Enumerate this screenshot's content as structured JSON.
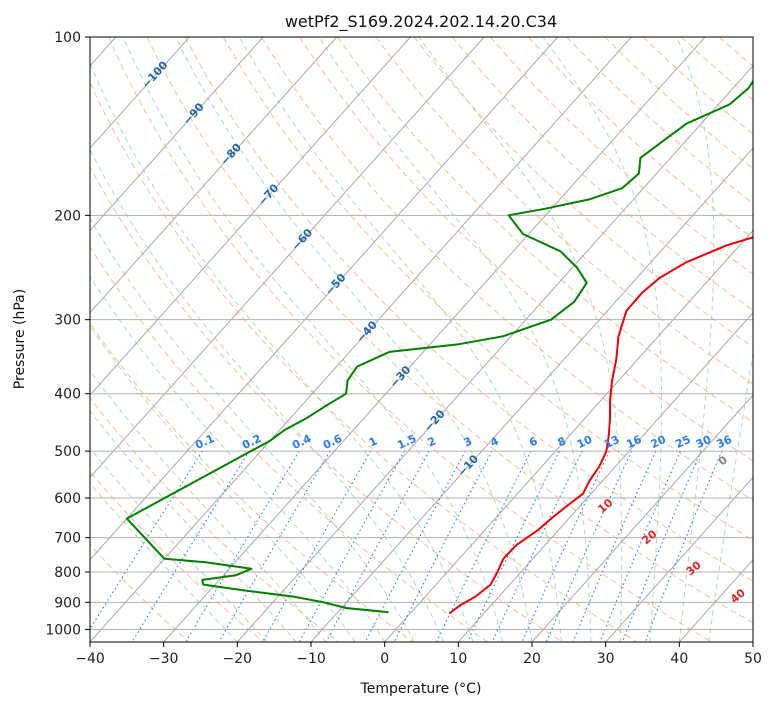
{
  "chart_data": {
    "type": "line",
    "title": "wetPf2_S169.2024.202.14.20.C34",
    "xlabel": "Temperature (°C)",
    "ylabel": "Pressure (hPa)",
    "xlim": [
      -40,
      50
    ],
    "ylim": [
      1050,
      100
    ],
    "y_scale": "log",
    "grid": true,
    "x_ticks": [
      -40,
      -30,
      -20,
      -10,
      0,
      10,
      20,
      30,
      40,
      50
    ],
    "x_tick_labels": [
      "−40",
      "−30",
      "−20",
      "−10",
      "0",
      "10",
      "20",
      "30",
      "40",
      "50"
    ],
    "y_ticks": [
      100,
      200,
      300,
      400,
      500,
      600,
      700,
      800,
      900,
      1000
    ],
    "y_tick_labels": [
      "100",
      "200",
      "300",
      "400",
      "500",
      "600",
      "700",
      "800",
      "900",
      "1000"
    ],
    "colors": {
      "temperature": "#e8000b",
      "dewpoint": "#008000",
      "isotherm": "#a8a8a8",
      "dry_adiabat": "#f4a582",
      "moist_adiabat": "#a6d3a6",
      "mixing_ratio": "#2b7de9",
      "isotherm_label": "#2166ac",
      "dry_label": "#d62728",
      "wet_bulb_label": "#808080"
    },
    "series": [
      {
        "role": "temperature",
        "points": [
          {
            "p": 940,
            "t": 5.3
          },
          {
            "p": 910,
            "t": 5.8
          },
          {
            "p": 880,
            "t": 6.8
          },
          {
            "p": 840,
            "t": 7.4
          },
          {
            "p": 800,
            "t": 6.8
          },
          {
            "p": 760,
            "t": 6.0
          },
          {
            "p": 720,
            "t": 6.1
          },
          {
            "p": 680,
            "t": 7.2
          },
          {
            "p": 650,
            "t": 7.6
          },
          {
            "p": 620,
            "t": 8.2
          },
          {
            "p": 590,
            "t": 8.9
          },
          {
            "p": 560,
            "t": 8.2
          },
          {
            "p": 530,
            "t": 7.8
          },
          {
            "p": 500,
            "t": 6.9
          },
          {
            "p": 470,
            "t": 5.3
          },
          {
            "p": 440,
            "t": 3.4
          },
          {
            "p": 410,
            "t": 1.2
          },
          {
            "p": 380,
            "t": -0.9
          },
          {
            "p": 350,
            "t": -2.9
          },
          {
            "p": 320,
            "t": -5.4
          },
          {
            "p": 290,
            "t": -7.4
          },
          {
            "p": 270,
            "t": -7.5
          },
          {
            "p": 255,
            "t": -6.9
          },
          {
            "p": 240,
            "t": -5.2
          },
          {
            "p": 225,
            "t": -1.8
          },
          {
            "p": 210,
            "t": 3.8
          },
          {
            "p": 195,
            "t": 7.1
          },
          {
            "p": 180,
            "t": 8.5
          },
          {
            "p": 165,
            "t": 10.3
          },
          {
            "p": 150,
            "t": 12.9
          },
          {
            "p": 135,
            "t": 13.8
          },
          {
            "p": 125,
            "t": 13.8
          },
          {
            "p": 115,
            "t": 15.3
          },
          {
            "p": 105,
            "t": 17.9
          },
          {
            "p": 100,
            "t": 18.1
          }
        ]
      },
      {
        "role": "dewpoint",
        "points": [
          {
            "p": 935,
            "t": -3.1
          },
          {
            "p": 920,
            "t": -9.4
          },
          {
            "p": 900,
            "t": -13.1
          },
          {
            "p": 880,
            "t": -17.9
          },
          {
            "p": 860,
            "t": -25.1
          },
          {
            "p": 840,
            "t": -31.6
          },
          {
            "p": 825,
            "t": -32.3
          },
          {
            "p": 810,
            "t": -28.3
          },
          {
            "p": 790,
            "t": -27.0
          },
          {
            "p": 770,
            "t": -34.0
          },
          {
            "p": 760,
            "t": -40.0
          },
          {
            "p": 650,
            "t": -50.0
          },
          {
            "p": 480,
            "t": -40.0
          },
          {
            "p": 460,
            "t": -39.3
          },
          {
            "p": 440,
            "t": -37.8
          },
          {
            "p": 420,
            "t": -36.7
          },
          {
            "p": 400,
            "t": -35.4
          },
          {
            "p": 380,
            "t": -36.8
          },
          {
            "p": 360,
            "t": -37.2
          },
          {
            "p": 340,
            "t": -34.6
          },
          {
            "p": 330,
            "t": -26.1
          },
          {
            "p": 320,
            "t": -21.1
          },
          {
            "p": 300,
            "t": -16.6
          },
          {
            "p": 280,
            "t": -15.6
          },
          {
            "p": 260,
            "t": -16.2
          },
          {
            "p": 245,
            "t": -19.4
          },
          {
            "p": 230,
            "t": -23.6
          },
          {
            "p": 215,
            "t": -30.8
          },
          {
            "p": 200,
            "t": -35.0
          },
          {
            "p": 195,
            "t": -30.9
          },
          {
            "p": 188,
            "t": -26.0
          },
          {
            "p": 180,
            "t": -22.9
          },
          {
            "p": 170,
            "t": -22.4
          },
          {
            "p": 160,
            "t": -24.1
          },
          {
            "p": 150,
            "t": -23.1
          },
          {
            "p": 140,
            "t": -22.0
          },
          {
            "p": 130,
            "t": -18.5
          },
          {
            "p": 122,
            "t": -17.9
          },
          {
            "p": 115,
            "t": -18.4
          },
          {
            "p": 108,
            "t": -17.8
          },
          {
            "p": 100,
            "t": -15.4
          }
        ]
      }
    ],
    "isotherm_labels": [
      "−100",
      "−90",
      "−80",
      "−70",
      "−60",
      "−50",
      "−40",
      "−30",
      "−20",
      "−10"
    ],
    "mixing_ratio_labels": [
      "0.1",
      "0.2",
      "0.4",
      "0.6",
      "1",
      "1.5",
      "2",
      "3",
      "4",
      "6",
      "8",
      "10",
      "13",
      "16",
      "20",
      "25",
      "30",
      "36"
    ],
    "wet_bulb_zero_label": "0",
    "dry_adiabat_labels": [
      "10",
      "20",
      "30",
      "40"
    ]
  }
}
